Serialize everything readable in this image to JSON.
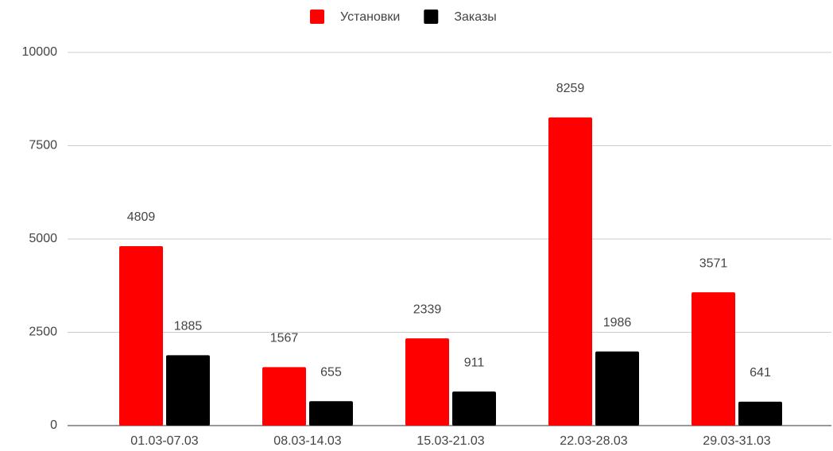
{
  "chart_data": {
    "type": "bar",
    "categories": [
      "01.03-07.03",
      "08.03-14.03",
      "15.03-21.03",
      "22.03-28.03",
      "29.03-31.03"
    ],
    "series": [
      {
        "name": "Установки",
        "color": "#ff0000",
        "values": [
          4809,
          1567,
          2339,
          8259,
          3571
        ]
      },
      {
        "name": "Заказы",
        "color": "#000000",
        "values": [
          1885,
          655,
          911,
          1986,
          641
        ]
      }
    ],
    "ylim": [
      0,
      10000
    ],
    "yticks": [
      0,
      2500,
      5000,
      7500,
      10000
    ],
    "grid": true,
    "legend": "top"
  }
}
